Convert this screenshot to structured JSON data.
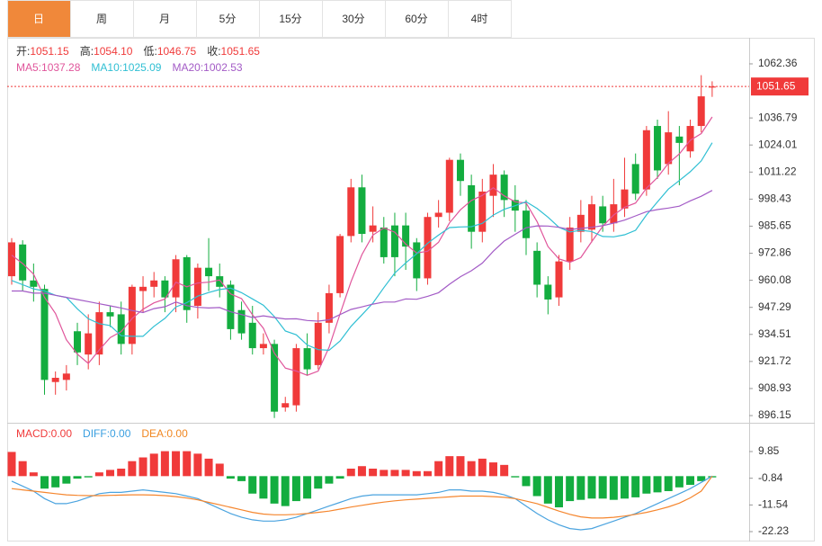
{
  "tabs": [
    "日",
    "周",
    "月",
    "5分",
    "15分",
    "30分",
    "60分",
    "4时"
  ],
  "chart_data": [
    {
      "type": "candlestick",
      "info": [
        {
          "label": "开:",
          "value": "1051.15"
        },
        {
          "label": "高:",
          "value": "1054.10"
        },
        {
          "label": "低:",
          "value": "1046.75"
        },
        {
          "label": "收:",
          "value": "1051.65"
        }
      ],
      "legend": [
        {
          "label": "MA5:",
          "value": "1037.28",
          "color": "#e0559b"
        },
        {
          "label": "MA10:",
          "value": "1025.09",
          "color": "#2fbfd3"
        },
        {
          "label": "MA20:",
          "value": "1002.53",
          "color": "#a35bc6"
        }
      ],
      "up_color": "#f03a3a",
      "down_color": "#13ad3f",
      "open": [
        962,
        977,
        960,
        956,
        912,
        913,
        936,
        925,
        925,
        945,
        944,
        930,
        955,
        957,
        960,
        952,
        971,
        948,
        966,
        962,
        958,
        946,
        940,
        928,
        930,
        900,
        901,
        928,
        920,
        940,
        954,
        981,
        1004,
        983,
        985,
        986,
        986,
        978,
        961,
        990,
        992,
        1017,
        1005,
        983,
        1000,
        1010,
        998,
        993,
        974,
        958,
        952,
        969,
        983,
        984,
        995,
        987,
        994,
        1015,
        1003,
        1033,
        1015,
        1028,
        1021,
        1033,
        1051.15
      ],
      "high": [
        980,
        979,
        968,
        958,
        917,
        920,
        940,
        944,
        950,
        948,
        950,
        958,
        962,
        964,
        962,
        972,
        972,
        968,
        980,
        968,
        960,
        950,
        948,
        935,
        932,
        905,
        930,
        935,
        945,
        958,
        982,
        1008,
        1010,
        995,
        990,
        992,
        992,
        980,
        992,
        998,
        1018,
        1020,
        1010,
        1008,
        1015,
        1012,
        1005,
        998,
        978,
        962,
        972,
        990,
        998,
        1000,
        1000,
        1008,
        1018,
        1020,
        1033,
        1036,
        1040,
        1033,
        1036,
        1057,
        1054.1
      ],
      "low": [
        958,
        955,
        950,
        906,
        906,
        908,
        920,
        918,
        920,
        938,
        925,
        925,
        945,
        952,
        945,
        945,
        940,
        942,
        955,
        952,
        932,
        932,
        925,
        925,
        895,
        898,
        898,
        915,
        918,
        935,
        952,
        978,
        978,
        978,
        968,
        962,
        965,
        955,
        958,
        985,
        988,
        1000,
        975,
        978,
        990,
        990,
        983,
        972,
        952,
        944,
        948,
        965,
        978,
        978,
        983,
        983,
        990,
        998,
        1000,
        1008,
        1010,
        1005,
        1018,
        1030,
        1046.75
      ],
      "close": [
        978,
        960,
        957,
        913,
        914,
        916,
        926,
        935,
        945,
        943,
        930,
        957,
        957,
        960,
        952,
        970,
        946,
        966,
        962,
        957,
        937,
        935,
        928,
        930,
        898,
        902,
        928,
        918,
        940,
        954,
        981,
        1004,
        982,
        986,
        971,
        971,
        976,
        961,
        990,
        992,
        1017,
        1007,
        983,
        1002,
        1010,
        998,
        993,
        980,
        958,
        951,
        969,
        985,
        991,
        996,
        987,
        996,
        1003,
        1001,
        1031,
        1012,
        1030,
        1025,
        1033,
        1047,
        1051.65
      ],
      "series": [
        {
          "color": "#e0559b",
          "values": [
            972,
            968,
            963,
            952,
            944.4,
            932,
            925.2,
            920.8,
            927.2,
            933,
            935.8,
            942,
            946.4,
            949.4,
            951.2,
            959.2,
            957,
            958.8,
            959.2,
            960.2,
            953.6,
            951.4,
            943.8,
            937.4,
            925.6,
            918.6,
            917.2,
            915.2,
            917.2,
            928.4,
            944.2,
            959.4,
            972.2,
            981.4,
            984.8,
            982.8,
            977.2,
            973,
            973.8,
            978,
            987.2,
            993.4,
            997.8,
            1000.2,
            1003.8,
            1000,
            997.2,
            996.6,
            987.8,
            976,
            970.2,
            968.6,
            970.8,
            978.4,
            985.6,
            991,
            994.6,
            996.6,
            1003.6,
            1008.6,
            1015.4,
            1019.8,
            1026.2,
            1029.4,
            1037.28
          ]
        },
        {
          "color": "#2fbfd3",
          "values": [
            960,
            958,
            956,
            955,
            953,
            952,
            946.6,
            941.9,
            939.6,
            938.7,
            933.9,
            933.6,
            933.6,
            938.3,
            942.1,
            947.5,
            949.5,
            952.6,
            954.3,
            955.7,
            956.4,
            954.2,
            951.3,
            948.3,
            942.9,
            936.1,
            934.3,
            929.5,
            927.3,
            927,
            931.4,
            938.3,
            943.7,
            949.3,
            956.6,
            963.5,
            968.3,
            972.6,
            977.6,
            981.4,
            985,
            985.3,
            985.4,
            987,
            990.9,
            993.6,
            995.3,
            997.2,
            994,
            989.9,
            985.1,
            982.9,
            983.7,
            983.1,
            980.8,
            980.6,
            981.6,
            983.7,
            991,
            997.1,
            1003.2,
            1007.2,
            1011.4,
            1016.5,
            1025.09
          ]
        },
        {
          "color": "#a35bc6",
          "values": [
            955,
            955,
            954,
            954,
            953,
            952,
            951,
            950,
            949,
            948,
            947,
            945.8,
            944.8,
            946.7,
            947.6,
            949.8,
            948.1,
            947.3,
            947,
            947.2,
            945.2,
            943.9,
            942.5,
            943.3,
            942.5,
            941.8,
            941.9,
            941.1,
            940.8,
            941.4,
            943.9,
            946.3,
            947.5,
            948.8,
            949.8,
            949.8,
            951.3,
            951.1,
            952.5,
            954.2,
            958.2,
            961.8,
            964.6,
            968.2,
            973.8,
            978.6,
            981.8,
            984.9,
            985.8,
            985.7,
            985.1,
            984.1,
            984.6,
            985.1,
            985.9,
            987.1,
            988.5,
            990.5,
            992.5,
            993.5,
            994.2,
            995.1,
            997.6,
            999.8,
            1002.53
          ]
        }
      ],
      "ylim": [
        892.75,
        1073.4
      ],
      "yticks": [
        1062.36,
        1036.79,
        1024.01,
        1011.22,
        998.43,
        985.65,
        972.86,
        960.08,
        947.29,
        934.51,
        921.72,
        908.93,
        896.15
      ],
      "price_line_color": "#f03a3a"
    },
    {
      "type": "macd",
      "legend": [
        {
          "label": "MACD:",
          "value": "0.00",
          "color": "#f03a3a"
        },
        {
          "label": "DIFF:",
          "value": "0.00",
          "color": "#3a9fe0"
        },
        {
          "label": "DEA:",
          "value": "0.00",
          "color": "#f0861f"
        }
      ],
      "up_color": "#f03a3a",
      "down_color": "#13ad3f",
      "values": [
        9.7,
        6,
        1.5,
        -5,
        -4.5,
        -3,
        -1,
        -0.5,
        1.5,
        2.5,
        3,
        6,
        7.5,
        9,
        10,
        10,
        10,
        9,
        7,
        5,
        -1,
        -2,
        -7,
        -9,
        -11,
        -12,
        -10,
        -9,
        -5,
        -3,
        -1,
        3,
        4,
        3,
        2.5,
        2.5,
        2.5,
        2,
        2,
        6,
        8,
        8,
        6,
        7,
        5.5,
        4.5,
        -0.5,
        -4,
        -8,
        -11,
        -12.5,
        -10,
        -9.5,
        -9,
        -9,
        -9.5,
        -9,
        -8.5,
        -7,
        -6.5,
        -6,
        -4.5,
        -3.5,
        -2,
        -0.5
      ],
      "series": [
        {
          "color": "#4aa3df",
          "values": [
            -2,
            -4,
            -6,
            -9,
            -11,
            -11,
            -10,
            -8.5,
            -7,
            -6.5,
            -6.5,
            -6,
            -5.5,
            -6,
            -6.5,
            -7,
            -8,
            -9,
            -11,
            -13,
            -15,
            -16.5,
            -17.5,
            -18,
            -18,
            -17.5,
            -16.5,
            -15,
            -13.5,
            -12,
            -10.5,
            -9,
            -8,
            -7.5,
            -7.5,
            -7.5,
            -7.5,
            -7.5,
            -7,
            -6.5,
            -5.5,
            -5.5,
            -6,
            -6,
            -6.5,
            -7.5,
            -9,
            -12,
            -15,
            -17.5,
            -19.5,
            -21,
            -21.5,
            -21,
            -19.5,
            -18,
            -16.5,
            -15,
            -13,
            -11,
            -9,
            -7,
            -5,
            -2.5,
            0
          ]
        },
        {
          "color": "#f5862e",
          "values": [
            -5,
            -5.5,
            -6,
            -6.5,
            -7,
            -7.5,
            -7.7,
            -7.8,
            -7.8,
            -7.7,
            -7.6,
            -7.5,
            -7.5,
            -7.6,
            -7.8,
            -8.2,
            -8.8,
            -9.5,
            -10.5,
            -11.5,
            -12.5,
            -13.5,
            -14.5,
            -15.2,
            -15.5,
            -15.5,
            -15.3,
            -15,
            -14.5,
            -14,
            -13.2,
            -12.4,
            -11.7,
            -11,
            -10.4,
            -9.9,
            -9.5,
            -9.2,
            -8.9,
            -8.6,
            -8.3,
            -8,
            -8,
            -8,
            -8.2,
            -8.5,
            -9,
            -10,
            -11,
            -12.5,
            -14,
            -15.3,
            -16.3,
            -16.8,
            -16.8,
            -16.5,
            -16,
            -15.3,
            -14.5,
            -13.5,
            -12.3,
            -10.8,
            -8.7,
            -6,
            0
          ]
        }
      ],
      "ylim": [
        -25.47,
        19.58
      ],
      "yticks": [
        9.85,
        -0.84,
        -11.54,
        -22.23
      ]
    }
  ]
}
